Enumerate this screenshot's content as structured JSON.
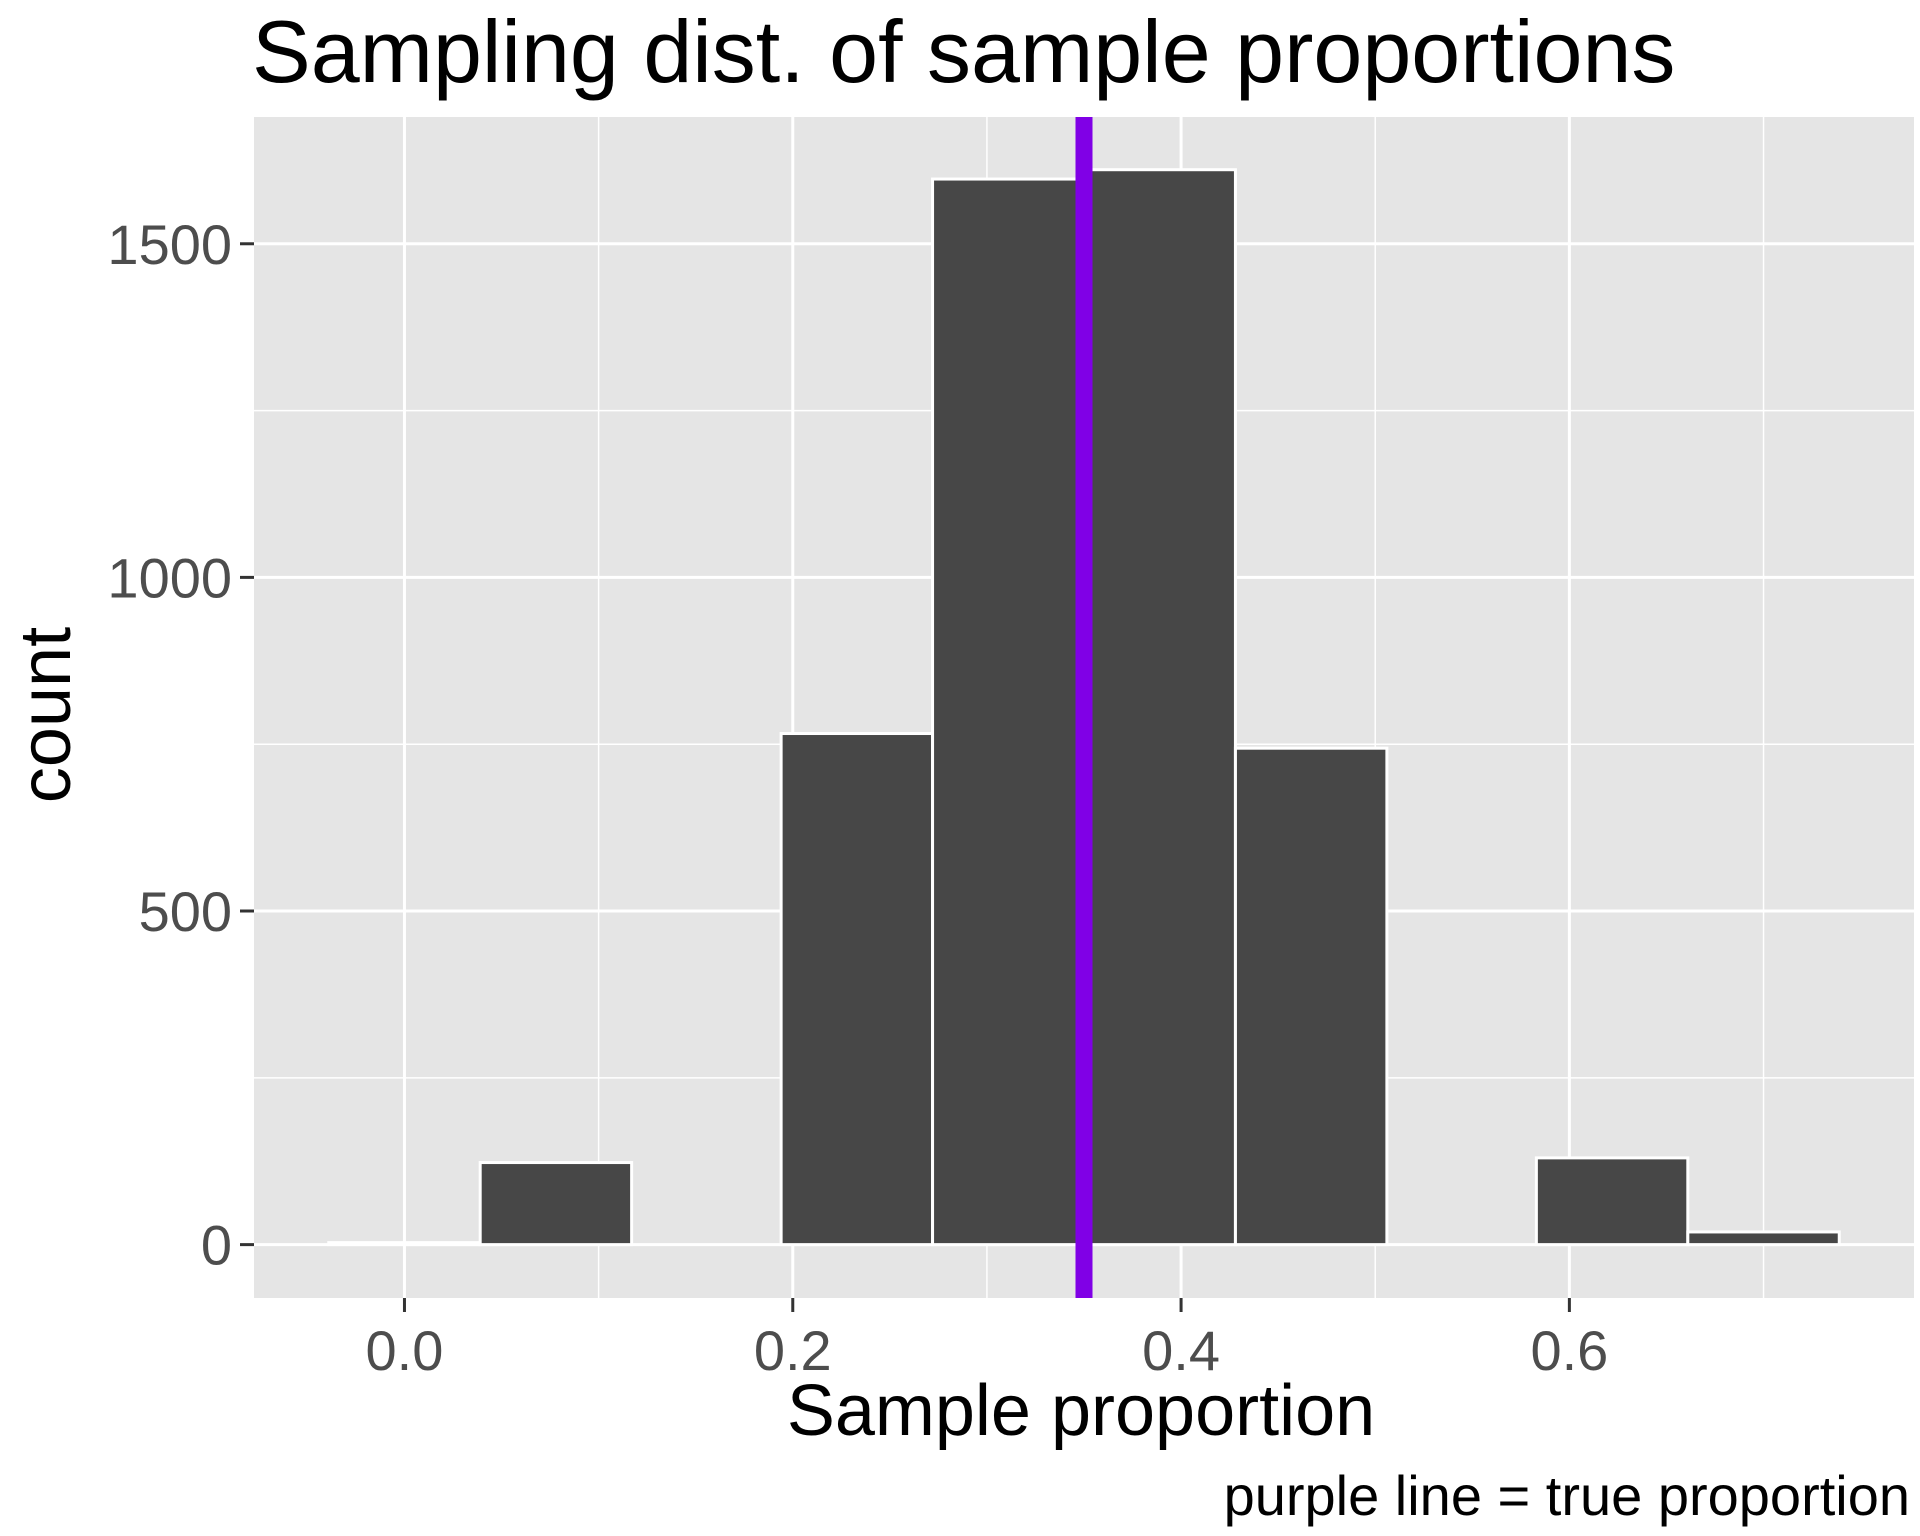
{
  "chart_data": {
    "type": "bar",
    "title": "Sampling dist. of sample proportions",
    "xlabel": "Sample proportion",
    "ylabel": "count",
    "caption": "purple line = true proportion",
    "xlim": [
      -0.0775,
      0.7775
    ],
    "ylim": [
      -80,
      1690
    ],
    "x_ticks": [
      0.0,
      0.2,
      0.4,
      0.6
    ],
    "x_tick_labels": [
      "0.0",
      "0.2",
      "0.4",
      "0.6"
    ],
    "x_minor_ticks": [
      0.1,
      0.3,
      0.5,
      0.7
    ],
    "y_ticks": [
      0,
      500,
      1000,
      1500
    ],
    "y_tick_labels": [
      "0",
      "500",
      "1000",
      "1500"
    ],
    "y_minor_ticks": [
      250,
      750,
      1250
    ],
    "bin_width": 0.0778,
    "bins": [
      {
        "x0": -0.039,
        "x1": 0.039,
        "count": 3
      },
      {
        "x0": 0.039,
        "x1": 0.117,
        "count": 123
      },
      {
        "x0": 0.117,
        "x1": 0.194,
        "count": 0
      },
      {
        "x0": 0.194,
        "x1": 0.272,
        "count": 766
      },
      {
        "x0": 0.272,
        "x1": 0.35,
        "count": 1597
      },
      {
        "x0": 0.35,
        "x1": 0.428,
        "count": 1611
      },
      {
        "x0": 0.428,
        "x1": 0.506,
        "count": 744
      },
      {
        "x0": 0.506,
        "x1": 0.583,
        "count": 0
      },
      {
        "x0": 0.583,
        "x1": 0.661,
        "count": 130
      },
      {
        "x0": 0.661,
        "x1": 0.739,
        "count": 19
      }
    ],
    "reference_line": {
      "x": 0.35,
      "color": "#8000e6"
    },
    "bar_fill": "#474747",
    "bar_outline": "#ffffff",
    "panel_background": "#e5e5e5",
    "grid": true
  }
}
